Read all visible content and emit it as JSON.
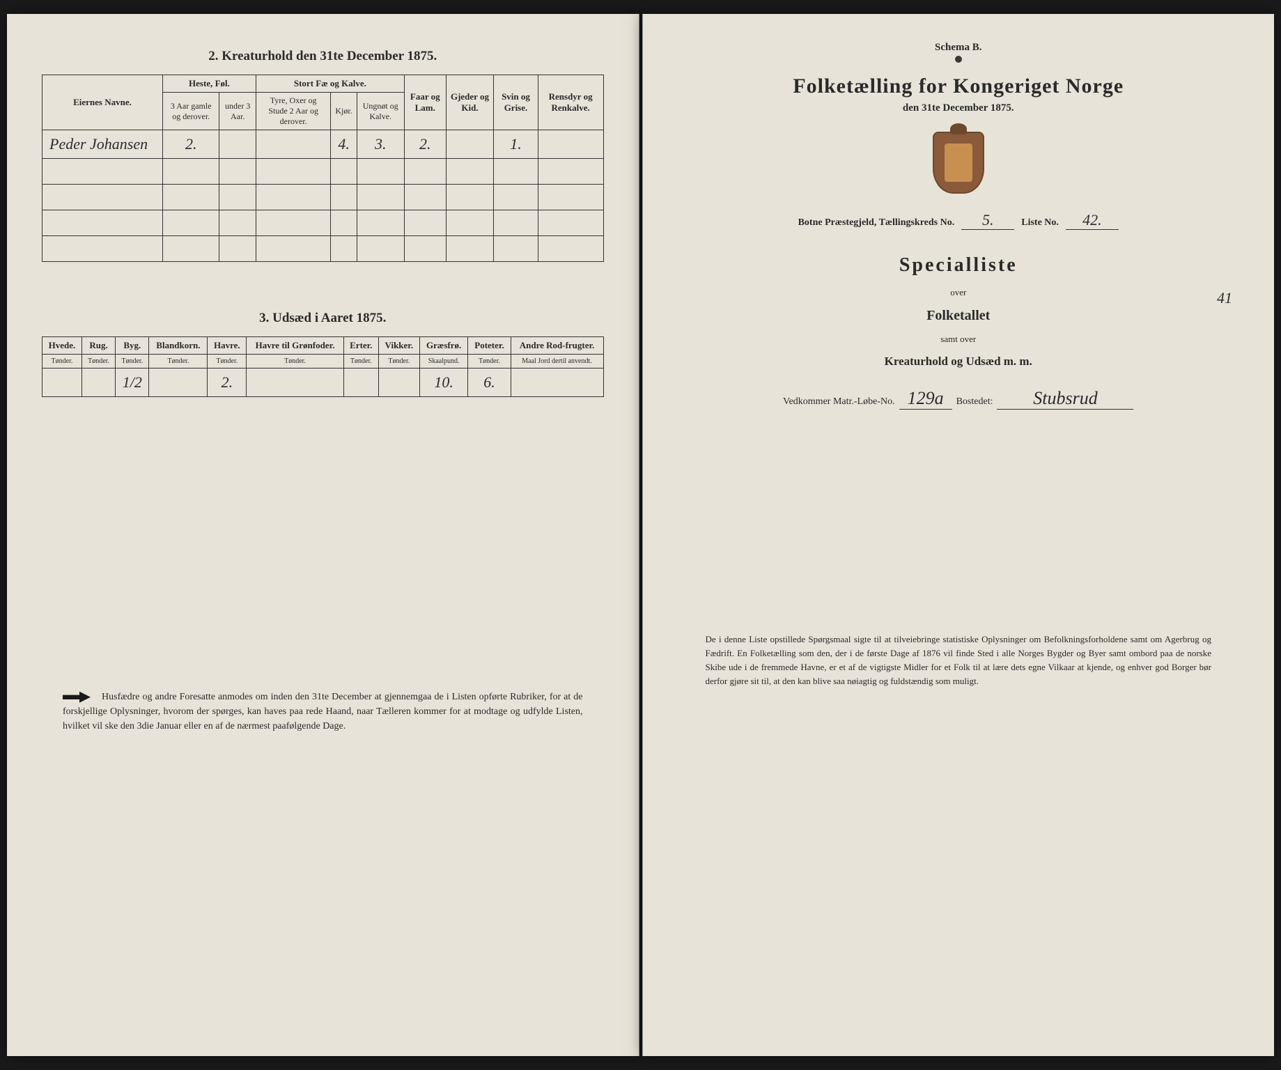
{
  "left": {
    "section2": {
      "title": "2. Kreaturhold den 31te December 1875.",
      "name_header": "Eiernes Navne.",
      "groups": [
        "Heste, Føl.",
        "Stort Fæ og Kalve.",
        "Faar og Lam.",
        "Gjeder og Kid.",
        "Svin og Grise.",
        "Rensdyr og Renkalve."
      ],
      "subheaders": {
        "heste1": "3 Aar gamle og derover.",
        "heste2": "under 3 Aar.",
        "fe1": "Tyre, Oxer og Stude 2 Aar og derover.",
        "fe2": "Kjør.",
        "fe3": "Ungnøt og Kalve."
      },
      "owner_name": "Peder Johansen",
      "values": {
        "heste_a": "2.",
        "heste_b": "",
        "fe_a": "",
        "fe_b": "4.",
        "fe_c": "3.",
        "faar": "2.",
        "gjeder": "",
        "svin": "1.",
        "rensdyr": ""
      }
    },
    "section3": {
      "title": "3. Udsæd i Aaret 1875.",
      "headers": [
        "Hvede.",
        "Rug.",
        "Byg.",
        "Blandkorn.",
        "Havre.",
        "Havre til Grønfoder.",
        "Erter.",
        "Vikker.",
        "Græsfrø.",
        "Poteter.",
        "Andre Rod-frugter."
      ],
      "units": [
        "Tønder.",
        "Tønder.",
        "Tønder.",
        "Tønder.",
        "Tønder.",
        "Tønder.",
        "Tønder.",
        "Tønder.",
        "Skaalpund.",
        "Tønder.",
        "Maal Jord dertil anvendt."
      ],
      "values": [
        "",
        "",
        "1/2",
        "",
        "2.",
        "",
        "",
        "",
        "10.",
        "6.",
        ""
      ]
    },
    "footnote": "Husfædre og andre Foresatte anmodes om inden den 31te December at gjennemgaa de i Listen opførte Rubriker, for at de forskjellige Oplysninger, hvorom der spørges, kan haves paa rede Haand, naar Tælleren kommer for at modtage og udfylde Listen, hvilket vil ske den 3die Januar eller en af de nærmest paafølgende Dage."
  },
  "right": {
    "schema": "Schema B.",
    "main_title": "Folketælling for Kongeriget Norge",
    "subtitle": "den 31te December 1875.",
    "praestegjeld_label": "Botne Præstegjeld, Tællingskreds No.",
    "praestegjeld_value": "5.",
    "liste_label": "Liste No.",
    "liste_value": "42.",
    "margin_no": "41",
    "special": "Specialliste",
    "over": "over",
    "folketallet": "Folketallet",
    "samt": "samt over",
    "kreatur": "Kreaturhold og Udsæd m. m.",
    "vedk_label": "Vedkommer Matr.-Løbe-No.",
    "matr_no": "129a",
    "bostedet_label": "Bostedet:",
    "bostedet_value": "Stubsrud",
    "footnote": "De i denne Liste opstillede Spørgsmaal sigte til at tilveiebringe statistiske Oplysninger om Befolkningsforholdene samt om Agerbrug og Fædrift. En Folketælling som den, der i de første Dage af 1876 vil finde Sted i alle Norges Bygder og Byer samt ombord paa de norske Skibe ude i de fremmede Havne, er et af de vigtigste Midler for et Folk til at lære dets egne Vilkaar at kjende, og enhver god Borger bør derfor gjøre sit til, at den kan blive saa nøiagtig og fuldstændig som muligt."
  }
}
